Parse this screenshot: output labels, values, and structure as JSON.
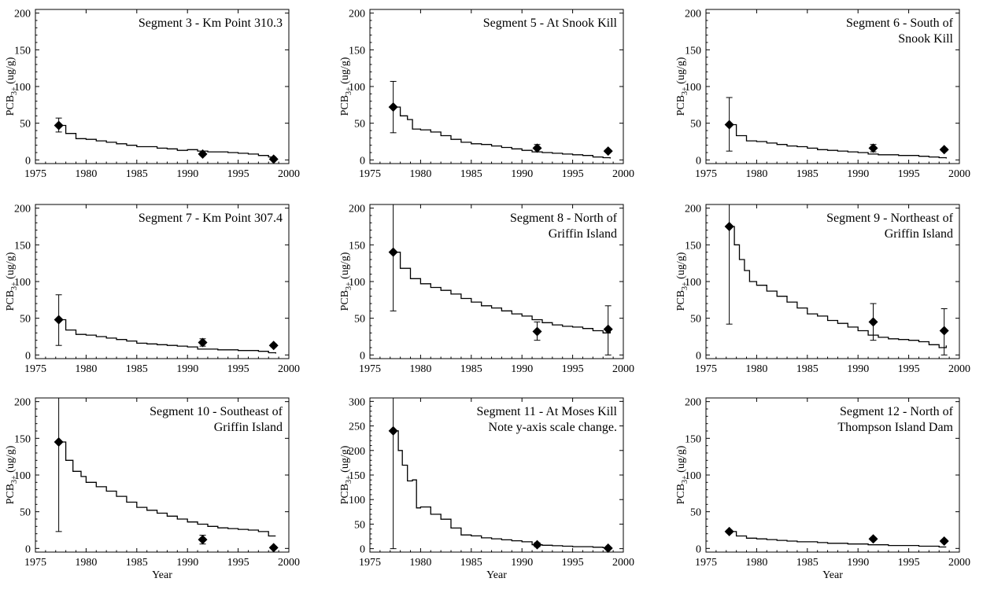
{
  "figure": {
    "xlabel": "Year",
    "ylabel_main": "PCB",
    "ylabel_sub": "3+",
    "ylabel_unit": " (ug/g)"
  },
  "chart_data": [
    {
      "type": "line",
      "title_lines": [
        "Segment 3 - Km Point 310.3"
      ],
      "xlim": [
        1975,
        2000
      ],
      "ylim": [
        -5,
        205
      ],
      "xticks": [
        1975,
        1980,
        1985,
        1990,
        1995,
        2000
      ],
      "yticks": [
        0,
        50,
        100,
        150,
        200
      ],
      "model": {
        "x": [
          1977.3,
          1978,
          1979,
          1980,
          1981,
          1982,
          1983,
          1984,
          1985,
          1986,
          1987,
          1988,
          1989,
          1990,
          1991,
          1992,
          1993,
          1994,
          1995,
          1996,
          1997,
          1998,
          1998.7
        ],
        "y": [
          47,
          36,
          29,
          28,
          26,
          24,
          22,
          20,
          18,
          18,
          16,
          15,
          13,
          14,
          12,
          11,
          11,
          10,
          9,
          8,
          6,
          4,
          2
        ]
      },
      "observed": [
        {
          "x": 1977.3,
          "y": 47,
          "lo": 38,
          "hi": 57
        },
        {
          "x": 1991.5,
          "y": 8,
          "lo": 6,
          "hi": 10
        },
        {
          "x": 1998.5,
          "y": 1,
          "lo": 0,
          "hi": 3
        }
      ]
    },
    {
      "type": "line",
      "title_lines": [
        "Segment 5 - At Snook Kill"
      ],
      "xlim": [
        1975,
        2000
      ],
      "ylim": [
        -5,
        205
      ],
      "xticks": [
        1975,
        1980,
        1985,
        1990,
        1995,
        2000
      ],
      "yticks": [
        0,
        50,
        100,
        150,
        200
      ],
      "model": {
        "x": [
          1977.3,
          1978,
          1978.7,
          1979.2,
          1980,
          1981,
          1982,
          1983,
          1984,
          1985,
          1986,
          1987,
          1988,
          1989,
          1990,
          1991,
          1992,
          1993,
          1994,
          1995,
          1996,
          1997,
          1998,
          1998.7
        ],
        "y": [
          72,
          60,
          55,
          42,
          41,
          38,
          33,
          28,
          24,
          22,
          21,
          19,
          17,
          15,
          13,
          11,
          10,
          9,
          8,
          7,
          6,
          4,
          3,
          2
        ]
      },
      "observed": [
        {
          "x": 1977.3,
          "y": 72,
          "lo": 37,
          "hi": 107
        },
        {
          "x": 1991.5,
          "y": 16,
          "lo": 11,
          "hi": 21
        },
        {
          "x": 1998.5,
          "y": 12,
          "lo": 10,
          "hi": 14
        }
      ]
    },
    {
      "type": "line",
      "title_lines": [
        "Segment 6 - South of",
        "Snook Kill"
      ],
      "xlim": [
        1975,
        2000
      ],
      "ylim": [
        -5,
        205
      ],
      "xticks": [
        1975,
        1980,
        1985,
        1990,
        1995,
        2000
      ],
      "yticks": [
        0,
        50,
        100,
        150,
        200
      ],
      "model": {
        "x": [
          1977.3,
          1978,
          1979,
          1980,
          1981,
          1982,
          1983,
          1984,
          1985,
          1986,
          1987,
          1988,
          1989,
          1990,
          1991,
          1992,
          1993,
          1994,
          1995,
          1996,
          1997,
          1998,
          1998.7
        ],
        "y": [
          48,
          33,
          26,
          25,
          23,
          21,
          19,
          18,
          16,
          14,
          13,
          12,
          11,
          10,
          8,
          7,
          7,
          6,
          6,
          5,
          4,
          3,
          2
        ]
      },
      "observed": [
        {
          "x": 1977.3,
          "y": 48,
          "lo": 12,
          "hi": 85
        },
        {
          "x": 1991.5,
          "y": 16,
          "lo": 11,
          "hi": 21
        },
        {
          "x": 1998.5,
          "y": 14,
          "lo": 12,
          "hi": 16
        }
      ]
    },
    {
      "type": "line",
      "title_lines": [
        "Segment 7 - Km Point 307.4"
      ],
      "xlim": [
        1975,
        2000
      ],
      "ylim": [
        -5,
        205
      ],
      "xticks": [
        1975,
        1980,
        1985,
        1990,
        1995,
        2000
      ],
      "yticks": [
        0,
        50,
        100,
        150,
        200
      ],
      "model": {
        "x": [
          1977.3,
          1978,
          1979,
          1980,
          1981,
          1982,
          1983,
          1984,
          1985,
          1986,
          1987,
          1988,
          1989,
          1990,
          1991,
          1992,
          1993,
          1994,
          1995,
          1996,
          1997,
          1998,
          1998.7
        ],
        "y": [
          48,
          34,
          28,
          27,
          25,
          23,
          21,
          19,
          16,
          15,
          14,
          13,
          12,
          11,
          8,
          8,
          7,
          7,
          6,
          6,
          5,
          3,
          2
        ]
      },
      "observed": [
        {
          "x": 1977.3,
          "y": 48,
          "lo": 13,
          "hi": 82
        },
        {
          "x": 1991.5,
          "y": 17,
          "lo": 12,
          "hi": 22
        },
        {
          "x": 1998.5,
          "y": 13,
          "lo": 11,
          "hi": 15
        }
      ]
    },
    {
      "type": "line",
      "title_lines": [
        "Segment 8 - North of",
        "Griffin Island"
      ],
      "xlim": [
        1975,
        2000
      ],
      "ylim": [
        -5,
        205
      ],
      "xticks": [
        1975,
        1980,
        1985,
        1990,
        1995,
        2000
      ],
      "yticks": [
        0,
        50,
        100,
        150,
        200
      ],
      "model": {
        "x": [
          1977.3,
          1978,
          1979,
          1980,
          1981,
          1982,
          1983,
          1984,
          1985,
          1986,
          1987,
          1988,
          1989,
          1990,
          1991,
          1992,
          1993,
          1994,
          1995,
          1996,
          1997,
          1998,
          1998.7
        ],
        "y": [
          140,
          118,
          104,
          97,
          92,
          88,
          83,
          77,
          72,
          67,
          64,
          60,
          56,
          53,
          48,
          44,
          41,
          39,
          38,
          36,
          33,
          30,
          35
        ]
      },
      "observed": [
        {
          "x": 1977.3,
          "y": 140,
          "lo": 60,
          "hi": 210
        },
        {
          "x": 1991.5,
          "y": 32,
          "lo": 20,
          "hi": 45
        },
        {
          "x": 1998.5,
          "y": 35,
          "lo": 0,
          "hi": 67
        }
      ]
    },
    {
      "type": "line",
      "title_lines": [
        "Segment 9 - Northeast of",
        "Griffin Island"
      ],
      "xlim": [
        1975,
        2000
      ],
      "ylim": [
        -5,
        205
      ],
      "xticks": [
        1975,
        1980,
        1985,
        1990,
        1995,
        2000
      ],
      "yticks": [
        0,
        50,
        100,
        150,
        200
      ],
      "model": {
        "x": [
          1977.3,
          1977.8,
          1978.3,
          1978.8,
          1979.3,
          1980,
          1981,
          1982,
          1983,
          1984,
          1985,
          1986,
          1987,
          1988,
          1989,
          1990,
          1991,
          1992,
          1993,
          1994,
          1995,
          1996,
          1997,
          1998,
          1998.7
        ],
        "y": [
          175,
          150,
          130,
          115,
          100,
          95,
          87,
          80,
          72,
          64,
          56,
          53,
          47,
          43,
          38,
          33,
          27,
          24,
          22,
          21,
          20,
          18,
          14,
          10,
          13
        ]
      },
      "observed": [
        {
          "x": 1977.3,
          "y": 175,
          "lo": 42,
          "hi": 210
        },
        {
          "x": 1991.5,
          "y": 45,
          "lo": 20,
          "hi": 70
        },
        {
          "x": 1998.5,
          "y": 33,
          "lo": 0,
          "hi": 63
        }
      ]
    },
    {
      "type": "line",
      "title_lines": [
        "Segment 10 - Southeast of",
        "Griffin Island"
      ],
      "xlim": [
        1975,
        2000
      ],
      "ylim": [
        -5,
        205
      ],
      "xticks": [
        1975,
        1980,
        1985,
        1990,
        1995,
        2000
      ],
      "yticks": [
        0,
        50,
        100,
        150,
        200
      ],
      "model": {
        "x": [
          1977.3,
          1978,
          1978.7,
          1979.5,
          1980,
          1981,
          1982,
          1983,
          1984,
          1985,
          1986,
          1987,
          1988,
          1989,
          1990,
          1991,
          1992,
          1993,
          1994,
          1995,
          1996,
          1997,
          1998,
          1998.7
        ],
        "y": [
          145,
          120,
          105,
          98,
          90,
          84,
          78,
          71,
          63,
          56,
          52,
          48,
          44,
          40,
          36,
          33,
          30,
          28,
          27,
          26,
          25,
          23,
          17,
          17
        ]
      },
      "observed": [
        {
          "x": 1977.3,
          "y": 145,
          "lo": 23,
          "hi": 210
        },
        {
          "x": 1991.5,
          "y": 12,
          "lo": 6,
          "hi": 18
        },
        {
          "x": 1998.5,
          "y": 1,
          "lo": 0,
          "hi": 3
        }
      ]
    },
    {
      "type": "line",
      "title_lines": [
        "Segment 11 - At Moses Kill",
        "Note y-axis scale change."
      ],
      "xlim": [
        1975,
        2000
      ],
      "ylim": [
        -7,
        307
      ],
      "xticks": [
        1975,
        1980,
        1985,
        1990,
        1995,
        2000
      ],
      "yticks": [
        0,
        50,
        100,
        150,
        200,
        250,
        300
      ],
      "model": {
        "x": [
          1977.3,
          1977.8,
          1978.2,
          1978.7,
          1979.2,
          1979.6,
          1980,
          1981,
          1982,
          1983,
          1984,
          1985,
          1986,
          1987,
          1988,
          1989,
          1990,
          1991,
          1992,
          1993,
          1994,
          1995,
          1996,
          1997,
          1998,
          1998.7
        ],
        "y": [
          240,
          200,
          170,
          138,
          140,
          83,
          85,
          70,
          60,
          42,
          28,
          26,
          22,
          20,
          18,
          16,
          14,
          8,
          7,
          6,
          5,
          4,
          4,
          3,
          2,
          1
        ]
      },
      "observed": [
        {
          "x": 1977.3,
          "y": 240,
          "lo": 0,
          "hi": 310
        },
        {
          "x": 1991.5,
          "y": 8,
          "lo": 4,
          "hi": 12
        },
        {
          "x": 1998.5,
          "y": 1,
          "lo": 0,
          "hi": 2
        }
      ]
    },
    {
      "type": "line",
      "title_lines": [
        "Segment 12 - North of",
        "Thompson Island Dam"
      ],
      "xlim": [
        1975,
        2000
      ],
      "ylim": [
        -5,
        205
      ],
      "xticks": [
        1975,
        1980,
        1985,
        1990,
        1995,
        2000
      ],
      "yticks": [
        0,
        50,
        100,
        150,
        200
      ],
      "model": {
        "x": [
          1977.3,
          1978,
          1979,
          1980,
          1981,
          1982,
          1983,
          1984,
          1985,
          1986,
          1987,
          1988,
          1989,
          1990,
          1991,
          1992,
          1993,
          1994,
          1995,
          1996,
          1997,
          1998,
          1998.7
        ],
        "y": [
          23,
          17,
          14,
          13,
          12,
          11,
          10,
          9,
          9,
          8,
          7,
          7,
          6,
          6,
          5,
          5,
          4,
          4,
          4,
          3,
          3,
          2,
          2
        ]
      },
      "observed": [
        {
          "x": 1977.3,
          "y": 23,
          "lo": 21,
          "hi": 25
        },
        {
          "x": 1991.5,
          "y": 13,
          "lo": 11,
          "hi": 15
        },
        {
          "x": 1998.5,
          "y": 10,
          "lo": 8,
          "hi": 12
        }
      ]
    }
  ]
}
